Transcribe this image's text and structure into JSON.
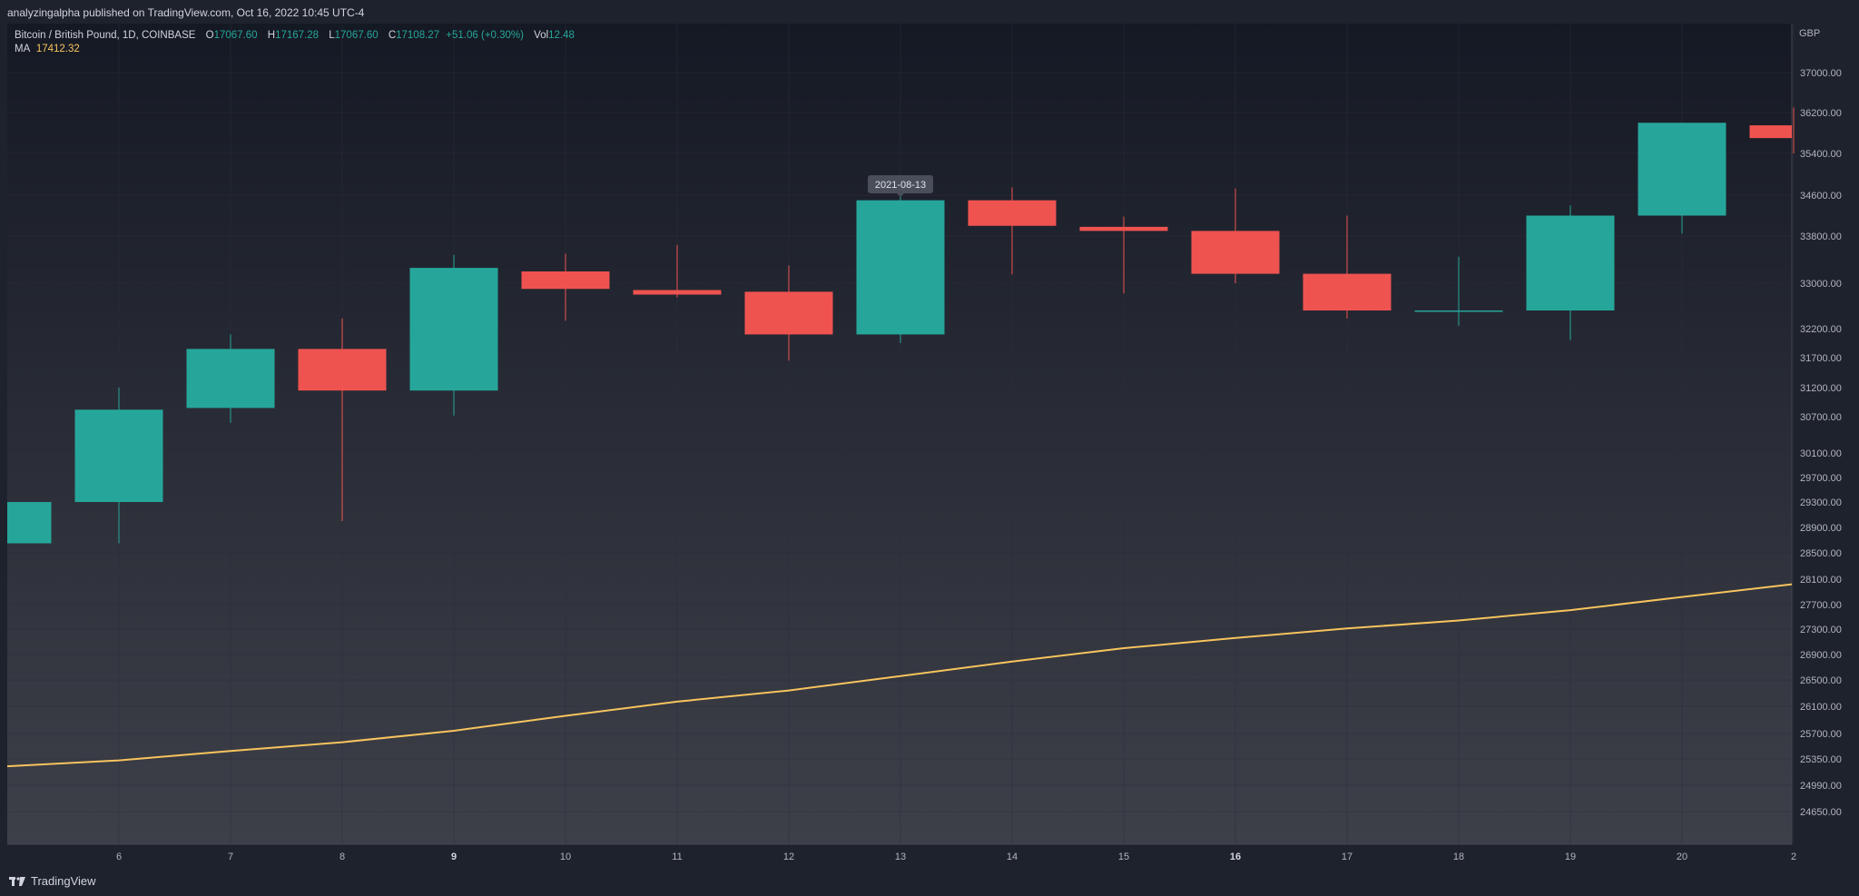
{
  "header": {
    "publish_text": "analyzingalpha published on TradingView.com, Oct 16, 2022 10:45 UTC-4"
  },
  "legend": {
    "symbol": "Bitcoin / British Pound, 1D, COINBASE",
    "o_label": "O",
    "o_value": "17067.60",
    "h_label": "H",
    "h_value": "17167.28",
    "l_label": "L",
    "l_value": "17067.60",
    "c_label": "C",
    "c_value": "17108.27",
    "change": "+51.06 (+0.30%)",
    "vol_label": "Vol",
    "vol_value": "12.48",
    "ma_label": "MA",
    "ma_value": "17412.32"
  },
  "tooltip": {
    "date": "2021-08-13"
  },
  "footer": {
    "brand": "TradingView"
  },
  "colors": {
    "up": "#26a69a",
    "down": "#ef5350",
    "ma": "#f7c45e",
    "background_top": "#151924",
    "background_bottom": "#3e4049",
    "grid": "#2a2e39",
    "text": "#b2b5be"
  },
  "chart_data": {
    "type": "candlestick",
    "currency": "GBP",
    "price_ticks": [
      "37000.00",
      "36200.00",
      "35400.00",
      "34600.00",
      "33800.00",
      "33000.00",
      "32200.00",
      "31700.00",
      "31200.00",
      "30700.00",
      "30100.00",
      "29700.00",
      "29300.00",
      "28900.00",
      "28500.00",
      "28100.00",
      "27700.00",
      "27300.00",
      "26900.00",
      "26500.00",
      "26100.00",
      "25700.00",
      "25350.00",
      "24990.00",
      "24650.00"
    ],
    "date_ticks": [
      "6",
      "7",
      "8",
      "9",
      "10",
      "11",
      "12",
      "13",
      "14",
      "15",
      "16",
      "17",
      "18",
      "19",
      "20",
      "2"
    ],
    "bold_dates": [
      "9",
      "16"
    ],
    "candles": [
      {
        "day": 5,
        "open": 28650,
        "close": 29300,
        "high": 29300,
        "low": 28650
      },
      {
        "day": 6,
        "open": 29300,
        "close": 30820,
        "high": 31200,
        "low": 28650
      },
      {
        "day": 7,
        "open": 30850,
        "close": 31850,
        "high": 32100,
        "low": 30600
      },
      {
        "day": 8,
        "open": 31850,
        "close": 31150,
        "high": 32380,
        "low": 29000
      },
      {
        "day": 9,
        "open": 31150,
        "close": 33260,
        "high": 33480,
        "low": 30720
      },
      {
        "day": 10,
        "open": 33200,
        "close": 32900,
        "high": 33500,
        "low": 32340
      },
      {
        "day": 11,
        "open": 32880,
        "close": 32800,
        "high": 33650,
        "low": 32750
      },
      {
        "day": 12,
        "open": 32850,
        "close": 32100,
        "high": 33300,
        "low": 31650
      },
      {
        "day": 13,
        "open": 32100,
        "close": 34500,
        "high": 34620,
        "low": 31950
      },
      {
        "day": 14,
        "open": 34500,
        "close": 34000,
        "high": 34750,
        "low": 33150
      },
      {
        "day": 15,
        "open": 33980,
        "close": 33900,
        "high": 34180,
        "low": 32820
      },
      {
        "day": 16,
        "open": 33900,
        "close": 33160,
        "high": 34730,
        "low": 33000
      },
      {
        "day": 17,
        "open": 33160,
        "close": 32520,
        "high": 34200,
        "low": 32380
      },
      {
        "day": 18,
        "open": 32500,
        "close": 32520,
        "high": 33450,
        "low": 32250
      },
      {
        "day": 19,
        "open": 32520,
        "close": 34200,
        "high": 34400,
        "low": 32000
      },
      {
        "day": 20,
        "open": 34200,
        "close": 36000,
        "high": 36000,
        "low": 33850
      },
      {
        "day": 21,
        "open": 35950,
        "close": 35700,
        "high": 36300,
        "low": 35400
      }
    ],
    "ma_series": [
      {
        "day": 5,
        "value": 25250
      },
      {
        "day": 6,
        "value": 25330
      },
      {
        "day": 7,
        "value": 25460
      },
      {
        "day": 8,
        "value": 25580
      },
      {
        "day": 9,
        "value": 25740
      },
      {
        "day": 10,
        "value": 25960
      },
      {
        "day": 11,
        "value": 26170
      },
      {
        "day": 12,
        "value": 26340
      },
      {
        "day": 13,
        "value": 26560
      },
      {
        "day": 14,
        "value": 26790
      },
      {
        "day": 15,
        "value": 27000
      },
      {
        "day": 16,
        "value": 27160
      },
      {
        "day": 17,
        "value": 27310
      },
      {
        "day": 18,
        "value": 27440
      },
      {
        "day": 19,
        "value": 27610
      },
      {
        "day": 20,
        "value": 27820
      },
      {
        "day": 21,
        "value": 28020
      }
    ]
  }
}
